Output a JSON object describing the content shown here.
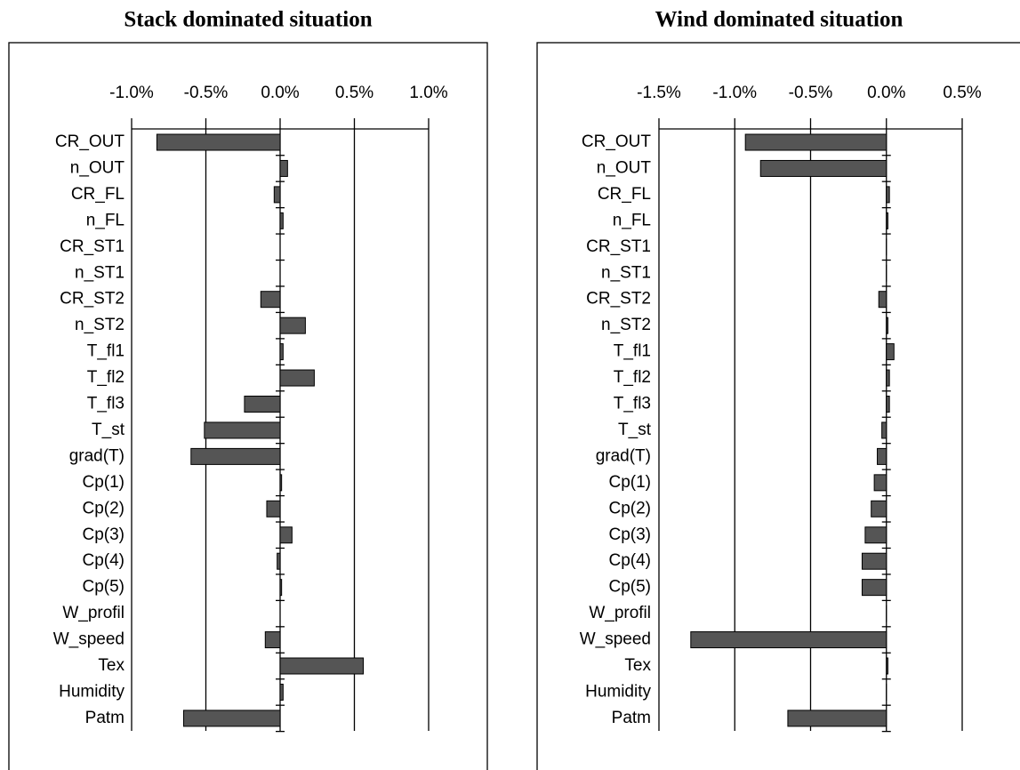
{
  "chart_data": [
    {
      "type": "bar",
      "orientation": "horizontal",
      "title": "Stack dominated situation",
      "categories": [
        "CR_OUT",
        "n_OUT",
        "CR_FL",
        "n_FL",
        "CR_ST1",
        "n_ST1",
        "CR_ST2",
        "n_ST2",
        "T_fl1",
        "T_fl2",
        "T_fl3",
        "T_st",
        "grad(T)",
        "Cp(1)",
        "Cp(2)",
        "Cp(3)",
        "Cp(4)",
        "Cp(5)",
        "W_profil",
        "W_speed",
        "Tex",
        "Humidity",
        "Patm"
      ],
      "values": [
        -0.83,
        0.05,
        -0.04,
        0.02,
        0,
        0,
        -0.13,
        0.17,
        0.02,
        0.23,
        -0.24,
        -0.51,
        -0.6,
        0.01,
        -0.09,
        0.08,
        -0.02,
        0.01,
        0,
        -0.1,
        0.56,
        0.02,
        -0.65
      ],
      "color": "#555555",
      "xlim": [
        -1.0,
        1.0
      ],
      "xticks": [
        {
          "value": -1.0,
          "label": "-1.0%"
        },
        {
          "value": -0.5,
          "label": "-0.5%"
        },
        {
          "value": 0.0,
          "label": "0.0%"
        },
        {
          "value": 0.5,
          "label": "0.5%"
        },
        {
          "value": 1.0,
          "label": "1.0%"
        }
      ],
      "grid": true
    },
    {
      "type": "bar",
      "orientation": "horizontal",
      "title": "Wind dominated situation",
      "categories": [
        "CR_OUT",
        "n_OUT",
        "CR_FL",
        "n_FL",
        "CR_ST1",
        "n_ST1",
        "CR_ST2",
        "n_ST2",
        "T_fl1",
        "T_fl2",
        "T_fl3",
        "T_st",
        "grad(T)",
        "Cp(1)",
        "Cp(2)",
        "Cp(3)",
        "Cp(4)",
        "Cp(5)",
        "W_profil",
        "W_speed",
        "Tex",
        "Humidity",
        "Patm"
      ],
      "values": [
        -0.93,
        -0.83,
        0.02,
        0.01,
        0,
        0,
        -0.05,
        0.01,
        0.05,
        0.02,
        0.02,
        -0.03,
        -0.06,
        -0.08,
        -0.1,
        -0.14,
        -0.16,
        -0.16,
        0,
        -1.29,
        0.01,
        0,
        -0.65
      ],
      "color": "#555555",
      "xlim": [
        -1.5,
        0.5
      ],
      "xticks": [
        {
          "value": -1.5,
          "label": "-1.5%"
        },
        {
          "value": -1.0,
          "label": "-1.0%"
        },
        {
          "value": -0.5,
          "label": "-0.5%"
        },
        {
          "value": 0.0,
          "label": "0.0%"
        },
        {
          "value": 0.5,
          "label": "0.5%"
        }
      ],
      "grid": true
    }
  ]
}
